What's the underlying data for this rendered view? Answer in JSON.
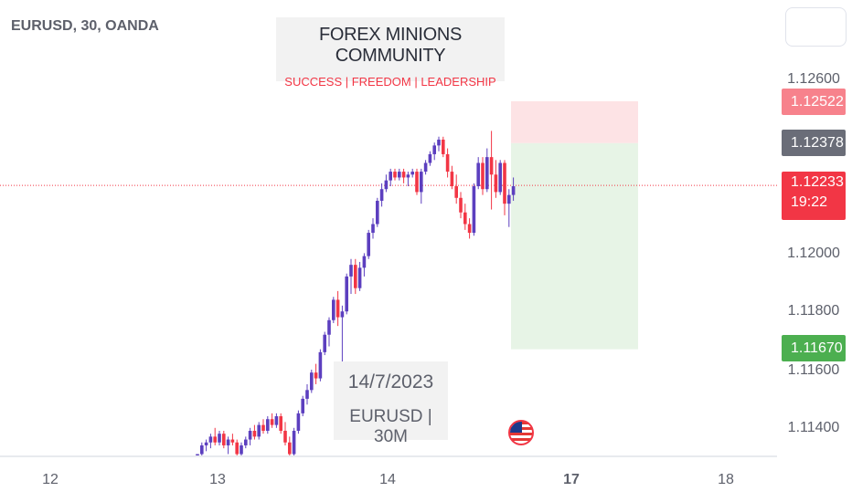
{
  "header": {
    "symbol": "EURUSD, 30, OANDA",
    "title": "FOREX MINIONS COMMUNITY",
    "subtitle": "SUCCESS | FREEDOM | LEADERSHIP"
  },
  "annotation": {
    "date": "14/7/2023",
    "pair": "EURUSD | 30M"
  },
  "price_axis": {
    "labels": [
      "1.12600",
      "1.12000",
      "1.11800",
      "1.11600",
      "1.11400"
    ],
    "tags": {
      "stop_loss": "1.12522",
      "entry": "1.12378",
      "current_price": "1.12233",
      "countdown": "19:22",
      "take_profit": "1.11670"
    }
  },
  "time_axis": {
    "labels": [
      "12",
      "13",
      "14",
      "17",
      "18"
    ]
  },
  "icons": {
    "event_flag": "us-flag-icon"
  },
  "colors": {
    "bull": "#5c3fbf",
    "bear": "#f23645",
    "stop_zone": "#fde3e5",
    "target_zone": "#e7f4e6",
    "current_line": "#f23645"
  },
  "chart_data": {
    "type": "candlestick",
    "timeframe": "30",
    "symbol": "EURUSD",
    "ylim": [
      1.113,
      1.128
    ],
    "x_ticks": [
      "12",
      "13",
      "14",
      "17",
      "18"
    ],
    "y_ticks": [
      1.126,
      1.12,
      1.118,
      1.116,
      1.114
    ],
    "current_price": 1.12233,
    "position": {
      "direction": "short",
      "entry": 1.12378,
      "stop": 1.12522,
      "target": 1.1167
    },
    "candles": [
      [
        1.113,
        1.1131,
        1.1129,
        1.1131
      ],
      [
        1.1131,
        1.1135,
        1.113,
        1.1134
      ],
      [
        1.1134,
        1.1136,
        1.1132,
        1.1135
      ],
      [
        1.1135,
        1.1138,
        1.1133,
        1.1137
      ],
      [
        1.1137,
        1.114,
        1.1134,
        1.1135
      ],
      [
        1.1135,
        1.1139,
        1.1134,
        1.1138
      ],
      [
        1.1138,
        1.1139,
        1.1133,
        1.1134
      ],
      [
        1.1134,
        1.1137,
        1.1131,
        1.1136
      ],
      [
        1.1136,
        1.1138,
        1.1134,
        1.1135
      ],
      [
        1.1135,
        1.1136,
        1.113,
        1.1131
      ],
      [
        1.1131,
        1.1135,
        1.113,
        1.1134
      ],
      [
        1.1134,
        1.1137,
        1.1133,
        1.1136
      ],
      [
        1.1136,
        1.114,
        1.1134,
        1.1139
      ],
      [
        1.1139,
        1.1141,
        1.1136,
        1.1137
      ],
      [
        1.1137,
        1.1142,
        1.1136,
        1.1141
      ],
      [
        1.1141,
        1.1143,
        1.1138,
        1.1139
      ],
      [
        1.1139,
        1.1144,
        1.1138,
        1.1143
      ],
      [
        1.1143,
        1.1145,
        1.114,
        1.1141
      ],
      [
        1.1141,
        1.1145,
        1.114,
        1.1144
      ],
      [
        1.1144,
        1.1145,
        1.1138,
        1.1139
      ],
      [
        1.1139,
        1.1142,
        1.1134,
        1.1135
      ],
      [
        1.1135,
        1.1137,
        1.113,
        1.1131
      ],
      [
        1.1131,
        1.114,
        1.113,
        1.1139
      ],
      [
        1.1139,
        1.1146,
        1.1138,
        1.1145
      ],
      [
        1.1145,
        1.1151,
        1.1144,
        1.115
      ],
      [
        1.115,
        1.1155,
        1.1148,
        1.1153
      ],
      [
        1.1153,
        1.116,
        1.1152,
        1.1159
      ],
      [
        1.1159,
        1.1162,
        1.1155,
        1.1157
      ],
      [
        1.1157,
        1.1167,
        1.1156,
        1.1166
      ],
      [
        1.1166,
        1.1173,
        1.1165,
        1.1172
      ],
      [
        1.1172,
        1.1178,
        1.1168,
        1.1177
      ],
      [
        1.1177,
        1.1185,
        1.1176,
        1.1184
      ],
      [
        1.1184,
        1.1187,
        1.1175,
        1.1178
      ],
      [
        1.1178,
        1.1182,
        1.1162,
        1.118
      ],
      [
        1.118,
        1.1193,
        1.1179,
        1.1192
      ],
      [
        1.1192,
        1.1198,
        1.1186,
        1.1196
      ],
      [
        1.1196,
        1.1198,
        1.1186,
        1.1188
      ],
      [
        1.1188,
        1.1197,
        1.1187,
        1.1195
      ],
      [
        1.1195,
        1.12,
        1.1192,
        1.1199
      ],
      [
        1.1199,
        1.1208,
        1.1198,
        1.1207
      ],
      [
        1.1207,
        1.1212,
        1.1205,
        1.121
      ],
      [
        1.121,
        1.1219,
        1.1209,
        1.1218
      ],
      [
        1.1218,
        1.1224,
        1.1216,
        1.1222
      ],
      [
        1.1222,
        1.1227,
        1.1221,
        1.1225
      ],
      [
        1.1225,
        1.1229,
        1.1223,
        1.1228
      ],
      [
        1.1228,
        1.1229,
        1.1225,
        1.1226
      ],
      [
        1.1226,
        1.1229,
        1.1225,
        1.1228
      ],
      [
        1.1228,
        1.1229,
        1.1224,
        1.1226
      ],
      [
        1.1226,
        1.1228,
        1.1223,
        1.1227
      ],
      [
        1.1227,
        1.1229,
        1.1226,
        1.1228
      ],
      [
        1.1228,
        1.1229,
        1.122,
        1.1221
      ],
      [
        1.1221,
        1.1229,
        1.1217,
        1.1228
      ],
      [
        1.1228,
        1.1232,
        1.1227,
        1.1231
      ],
      [
        1.1231,
        1.1235,
        1.123,
        1.1234
      ],
      [
        1.1234,
        1.1238,
        1.1232,
        1.1237
      ],
      [
        1.1237,
        1.124,
        1.1235,
        1.1239
      ],
      [
        1.1239,
        1.124,
        1.1233,
        1.1234
      ],
      [
        1.1234,
        1.1236,
        1.1226,
        1.1228
      ],
      [
        1.1228,
        1.123,
        1.1222,
        1.1223
      ],
      [
        1.1223,
        1.1227,
        1.1217,
        1.1219
      ],
      [
        1.1219,
        1.1221,
        1.1212,
        1.1214
      ],
      [
        1.1214,
        1.1217,
        1.1208,
        1.121
      ],
      [
        1.121,
        1.1212,
        1.1205,
        1.1207
      ],
      [
        1.1207,
        1.1224,
        1.1206,
        1.1223
      ],
      [
        1.1223,
        1.1233,
        1.1222,
        1.1231
      ],
      [
        1.1231,
        1.1233,
        1.122,
        1.1222
      ],
      [
        1.1222,
        1.1236,
        1.1221,
        1.1233
      ],
      [
        1.1233,
        1.1242,
        1.1215,
        1.1227
      ],
      [
        1.1227,
        1.1232,
        1.1219,
        1.1221
      ],
      [
        1.1221,
        1.1232,
        1.122,
        1.1231
      ],
      [
        1.1231,
        1.1232,
        1.1213,
        1.1217
      ],
      [
        1.1217,
        1.1222,
        1.1209,
        1.122
      ],
      [
        1.122,
        1.1226,
        1.1218,
        1.1223
      ]
    ]
  }
}
